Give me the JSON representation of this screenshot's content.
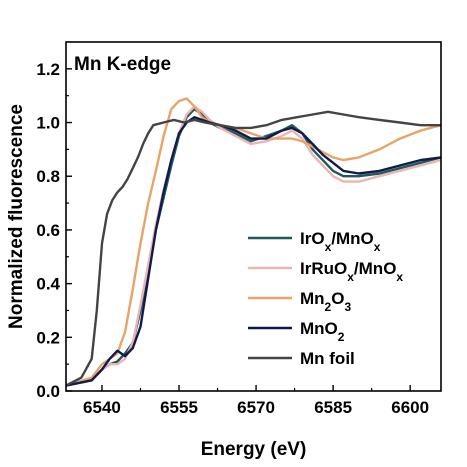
{
  "chart_data": {
    "type": "line",
    "title": "Mn K-edge",
    "xlabel": "Energy (eV)",
    "ylabel": "Normalized fluorescence",
    "xlim": [
      6533,
      6606
    ],
    "ylim": [
      0.0,
      1.3
    ],
    "xticks": [
      6540,
      6555,
      6570,
      6585,
      6600
    ],
    "yticks": [
      0.0,
      0.2,
      0.4,
      0.6,
      0.8,
      1.0,
      1.2
    ],
    "grid": false,
    "legend_position": "bottom-right",
    "series": [
      {
        "name": "IrOx/MnOx",
        "legend": {
          "base": "IrO",
          "sub1": "x",
          "mid": "/MnO",
          "sub2": "x"
        },
        "color": "#1f5a57",
        "points": [
          [
            6533,
            0.02
          ],
          [
            6538,
            0.04
          ],
          [
            6540,
            0.08
          ],
          [
            6541.5,
            0.1
          ],
          [
            6543,
            0.11
          ],
          [
            6544.5,
            0.14
          ],
          [
            6546,
            0.18
          ],
          [
            6547.5,
            0.3
          ],
          [
            6549,
            0.45
          ],
          [
            6550.5,
            0.6
          ],
          [
            6552,
            0.72
          ],
          [
            6553.5,
            0.84
          ],
          [
            6555,
            0.95
          ],
          [
            6556.5,
            1.02
          ],
          [
            6558,
            1.05
          ],
          [
            6559.5,
            1.03
          ],
          [
            6561,
            1.0
          ],
          [
            6563,
            0.98
          ],
          [
            6566,
            0.96
          ],
          [
            6569,
            0.93
          ],
          [
            6572,
            0.95
          ],
          [
            6575,
            0.97
          ],
          [
            6577,
            0.99
          ],
          [
            6579,
            0.96
          ],
          [
            6581,
            0.9
          ],
          [
            6583,
            0.86
          ],
          [
            6585,
            0.82
          ],
          [
            6587,
            0.8
          ],
          [
            6590,
            0.8
          ],
          [
            6594,
            0.81
          ],
          [
            6598,
            0.83
          ],
          [
            6602,
            0.85
          ],
          [
            6606,
            0.87
          ]
        ]
      },
      {
        "name": "IrRuOx/MnOx",
        "legend": {
          "base": "IrRuO",
          "sub1": "x",
          "mid": "/MnO",
          "sub2": "x"
        },
        "color": "#eeb4b4",
        "points": [
          [
            6533,
            0.02
          ],
          [
            6538,
            0.04
          ],
          [
            6540,
            0.08
          ],
          [
            6541.5,
            0.1
          ],
          [
            6543,
            0.1
          ],
          [
            6544.5,
            0.12
          ],
          [
            6546,
            0.18
          ],
          [
            6547.5,
            0.32
          ],
          [
            6549,
            0.47
          ],
          [
            6550.5,
            0.62
          ],
          [
            6552,
            0.75
          ],
          [
            6553.5,
            0.86
          ],
          [
            6555,
            0.96
          ],
          [
            6556.5,
            1.03
          ],
          [
            6558,
            1.06
          ],
          [
            6559.5,
            1.04
          ],
          [
            6561,
            1.01
          ],
          [
            6563,
            0.98
          ],
          [
            6566,
            0.95
          ],
          [
            6569,
            0.92
          ],
          [
            6572,
            0.93
          ],
          [
            6575,
            0.95
          ],
          [
            6577,
            0.97
          ],
          [
            6579,
            0.94
          ],
          [
            6581,
            0.88
          ],
          [
            6583,
            0.84
          ],
          [
            6585,
            0.8
          ],
          [
            6587,
            0.78
          ],
          [
            6590,
            0.78
          ],
          [
            6594,
            0.8
          ],
          [
            6598,
            0.82
          ],
          [
            6602,
            0.84
          ],
          [
            6606,
            0.86
          ]
        ]
      },
      {
        "name": "Mn2O3",
        "legend": {
          "base": "Mn",
          "sub1": "2",
          "mid": "O",
          "sub2": "3"
        },
        "color": "#e8a468",
        "points": [
          [
            6533,
            0.02
          ],
          [
            6538,
            0.05
          ],
          [
            6540,
            0.1
          ],
          [
            6541.5,
            0.12
          ],
          [
            6543,
            0.14
          ],
          [
            6544.5,
            0.22
          ],
          [
            6546,
            0.38
          ],
          [
            6547.5,
            0.55
          ],
          [
            6549,
            0.7
          ],
          [
            6550.5,
            0.82
          ],
          [
            6552,
            0.95
          ],
          [
            6553.5,
            1.05
          ],
          [
            6555,
            1.08
          ],
          [
            6556.5,
            1.09
          ],
          [
            6558,
            1.06
          ],
          [
            6559.5,
            1.02
          ],
          [
            6561,
            1.0
          ],
          [
            6563,
            0.99
          ],
          [
            6566,
            0.98
          ],
          [
            6569,
            0.96
          ],
          [
            6572,
            0.94
          ],
          [
            6575,
            0.94
          ],
          [
            6577,
            0.94
          ],
          [
            6579,
            0.93
          ],
          [
            6581,
            0.91
          ],
          [
            6583,
            0.89
          ],
          [
            6585,
            0.87
          ],
          [
            6587,
            0.86
          ],
          [
            6590,
            0.87
          ],
          [
            6594,
            0.9
          ],
          [
            6598,
            0.94
          ],
          [
            6602,
            0.97
          ],
          [
            6606,
            0.99
          ]
        ]
      },
      {
        "name": "MnO2",
        "legend": {
          "base": "MnO",
          "sub1": "2",
          "mid": "",
          "sub2": ""
        },
        "color": "#0f1a4d",
        "points": [
          [
            6533,
            0.02
          ],
          [
            6538,
            0.04
          ],
          [
            6540,
            0.08
          ],
          [
            6541.5,
            0.12
          ],
          [
            6543,
            0.15
          ],
          [
            6544.5,
            0.13
          ],
          [
            6546,
            0.16
          ],
          [
            6547.5,
            0.24
          ],
          [
            6549,
            0.42
          ],
          [
            6550.5,
            0.6
          ],
          [
            6552,
            0.74
          ],
          [
            6553.5,
            0.86
          ],
          [
            6555,
            0.96
          ],
          [
            6556.5,
            1.0
          ],
          [
            6558,
            1.02
          ],
          [
            6559.5,
            1.01
          ],
          [
            6561,
            1.0
          ],
          [
            6563,
            0.99
          ],
          [
            6566,
            0.97
          ],
          [
            6569,
            0.94
          ],
          [
            6572,
            0.94
          ],
          [
            6575,
            0.97
          ],
          [
            6577,
            0.98
          ],
          [
            6579,
            0.96
          ],
          [
            6581,
            0.92
          ],
          [
            6583,
            0.88
          ],
          [
            6585,
            0.85
          ],
          [
            6587,
            0.82
          ],
          [
            6590,
            0.81
          ],
          [
            6594,
            0.82
          ],
          [
            6598,
            0.84
          ],
          [
            6602,
            0.86
          ],
          [
            6606,
            0.87
          ]
        ]
      },
      {
        "name": "Mn foil",
        "legend": {
          "base": "Mn foil",
          "sub1": "",
          "mid": "",
          "sub2": ""
        },
        "color": "#444444",
        "points": [
          [
            6533,
            0.02
          ],
          [
            6536,
            0.05
          ],
          [
            6538,
            0.12
          ],
          [
            6539,
            0.3
          ],
          [
            6540,
            0.55
          ],
          [
            6541,
            0.66
          ],
          [
            6542,
            0.71
          ],
          [
            6543,
            0.74
          ],
          [
            6544,
            0.76
          ],
          [
            6545,
            0.79
          ],
          [
            6546,
            0.83
          ],
          [
            6547,
            0.87
          ],
          [
            6548,
            0.92
          ],
          [
            6549,
            0.96
          ],
          [
            6550,
            0.99
          ],
          [
            6552,
            1.0
          ],
          [
            6554,
            1.01
          ],
          [
            6556,
            1.0
          ],
          [
            6558,
            1.01
          ],
          [
            6560,
            1.0
          ],
          [
            6563,
            0.99
          ],
          [
            6566,
            0.98
          ],
          [
            6569,
            0.98
          ],
          [
            6572,
            0.99
          ],
          [
            6575,
            1.01
          ],
          [
            6578,
            1.02
          ],
          [
            6581,
            1.03
          ],
          [
            6584,
            1.04
          ],
          [
            6587,
            1.03
          ],
          [
            6590,
            1.02
          ],
          [
            6594,
            1.01
          ],
          [
            6598,
            1.0
          ],
          [
            6602,
            0.99
          ],
          [
            6606,
            0.99
          ]
        ]
      }
    ]
  }
}
